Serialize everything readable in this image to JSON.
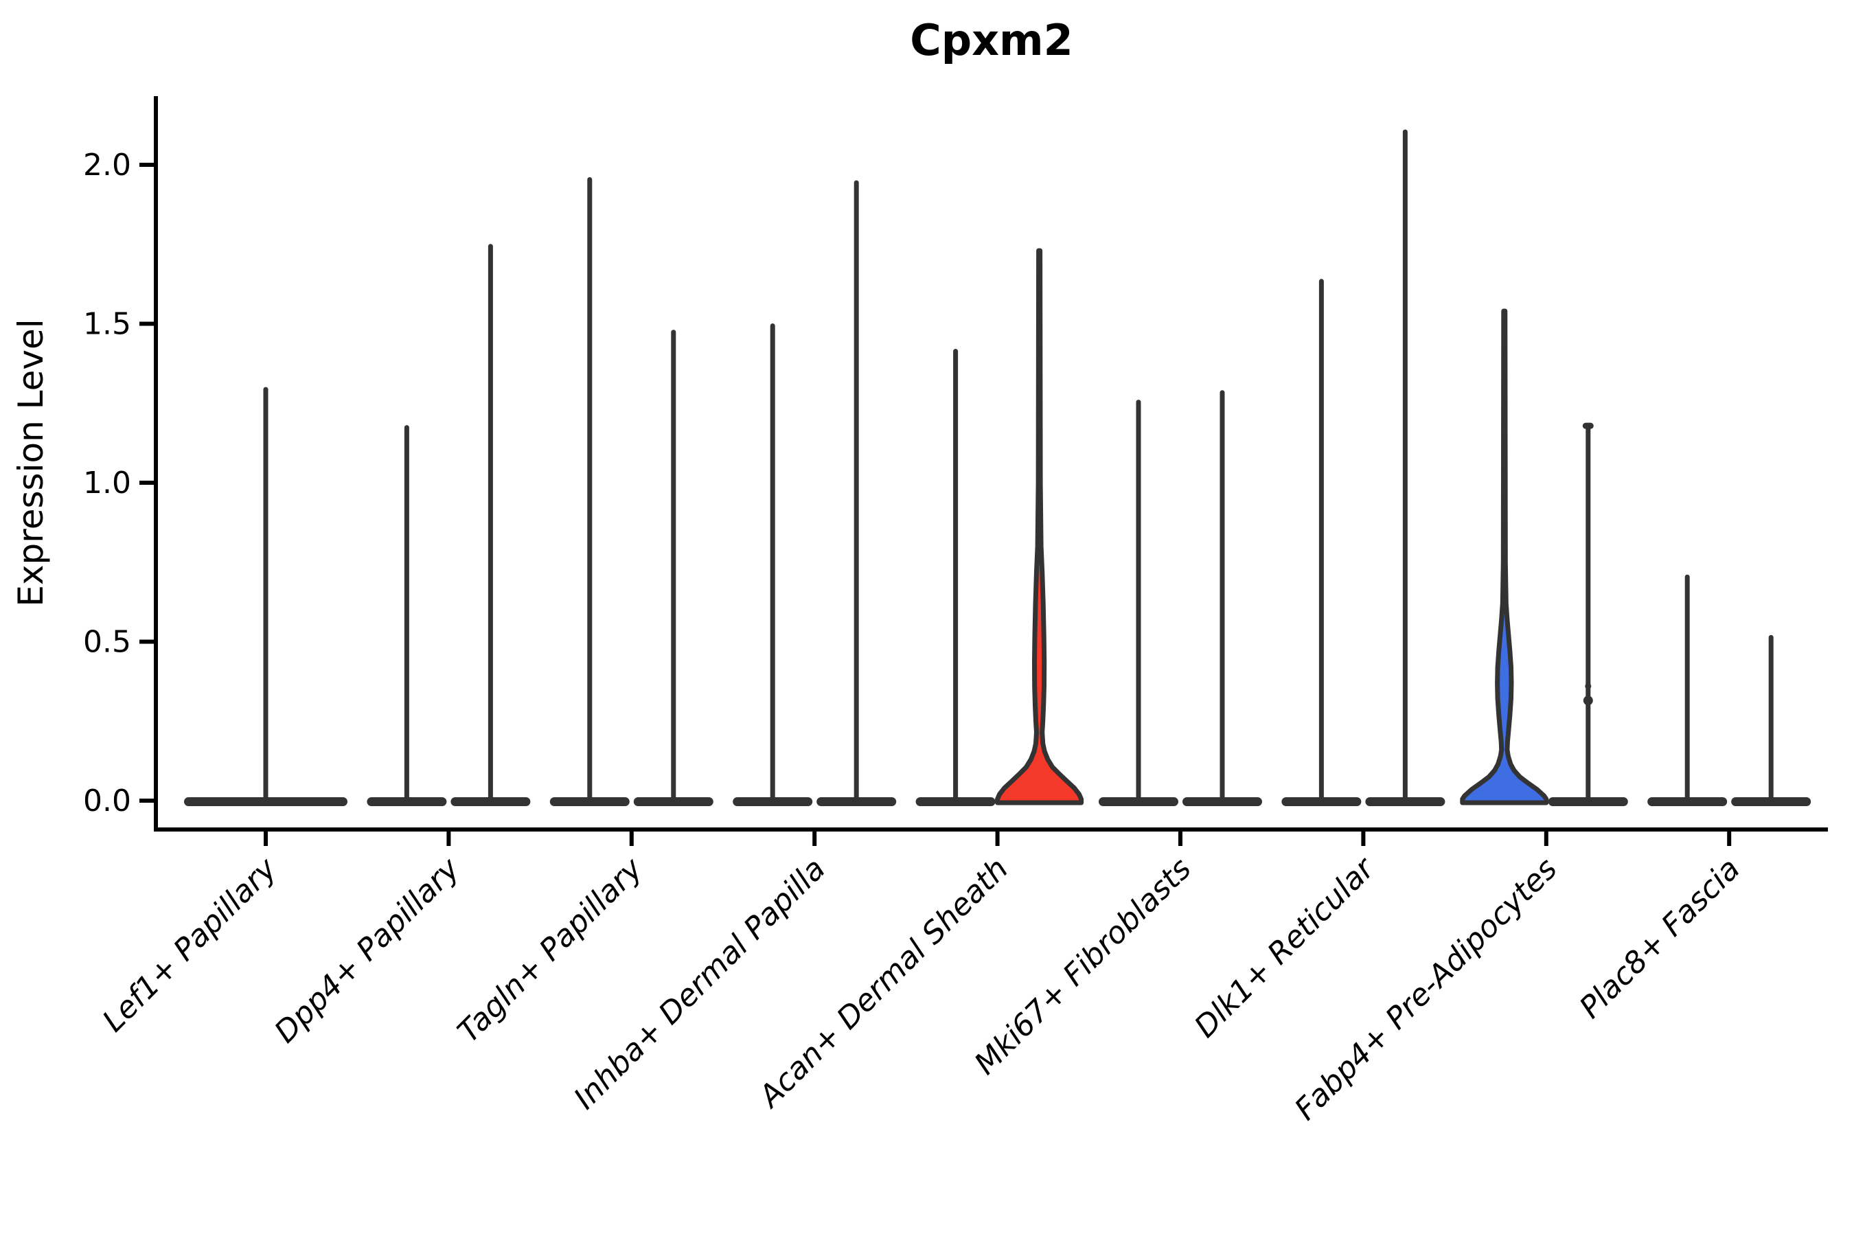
{
  "chart_data": {
    "type": "violin",
    "title": "Cpxm2",
    "ylabel": "Expression Level",
    "xlabel": "",
    "ytick_labels": [
      "0.0",
      "0.5",
      "1.0",
      "1.5",
      "2.0"
    ],
    "ytick_values": [
      0.0,
      0.5,
      1.0,
      1.5,
      2.0
    ],
    "ylim": [
      -0.11,
      2.22
    ],
    "grid": false,
    "legend": null,
    "categories": [
      "Lef1+ Papillary",
      "Dpp4+ Papillary",
      "Tagln+ Papillary",
      "Inhba+ Dermal Papilla",
      "Acan+ Dermal Sheath",
      "Mki67+ Fibroblasts",
      "Dlk1+ Reticular",
      "Fabp4+ Pre-Adipocytes",
      "Plac8+ Fascia"
    ],
    "violins": [
      {
        "category_index": 0,
        "category": "Lef1+ Papillary",
        "position": "center",
        "max_expression": 1.3,
        "fill": "white",
        "bulk_at_zero": true
      },
      {
        "category_index": 1,
        "category": "Dpp4+ Papillary",
        "position": "left",
        "max_expression": 1.18,
        "fill": "white",
        "bulk_at_zero": true
      },
      {
        "category_index": 1,
        "category": "Dpp4+ Papillary",
        "position": "right",
        "max_expression": 1.75,
        "fill": "white",
        "bulk_at_zero": true
      },
      {
        "category_index": 2,
        "category": "Tagln+ Papillary",
        "position": "left",
        "max_expression": 1.96,
        "fill": "white",
        "bulk_at_zero": true
      },
      {
        "category_index": 2,
        "category": "Tagln+ Papillary",
        "position": "right",
        "max_expression": 1.48,
        "fill": "white",
        "bulk_at_zero": true
      },
      {
        "category_index": 3,
        "category": "Inhba+ Dermal Papilla",
        "position": "left",
        "max_expression": 1.5,
        "fill": "white",
        "bulk_at_zero": true
      },
      {
        "category_index": 3,
        "category": "Inhba+ Dermal Papilla",
        "position": "right",
        "max_expression": 1.95,
        "fill": "white",
        "bulk_at_zero": true
      },
      {
        "category_index": 4,
        "category": "Acan+ Dermal Sheath",
        "position": "left",
        "max_expression": 1.42,
        "fill": "white",
        "bulk_at_zero": true
      },
      {
        "category_index": 4,
        "category": "Acan+ Dermal Sheath",
        "position": "right",
        "max_expression": 1.73,
        "fill": "red",
        "profile": "red_profile"
      },
      {
        "category_index": 5,
        "category": "Mki67+ Fibroblasts",
        "position": "left",
        "max_expression": 1.26,
        "fill": "white",
        "bulk_at_zero": true
      },
      {
        "category_index": 5,
        "category": "Mki67+ Fibroblasts",
        "position": "right",
        "max_expression": 1.29,
        "fill": "white",
        "bulk_at_zero": true
      },
      {
        "category_index": 6,
        "category": "Dlk1+ Reticular",
        "position": "left",
        "max_expression": 1.64,
        "fill": "white",
        "bulk_at_zero": true
      },
      {
        "category_index": 6,
        "category": "Dlk1+ Reticular",
        "position": "right",
        "max_expression": 2.11,
        "fill": "white",
        "bulk_at_zero": true
      },
      {
        "category_index": 7,
        "category": "Fabp4+ Pre-Adipocytes",
        "position": "left",
        "max_expression": 1.54,
        "fill": "blue",
        "profile": "blue_profile"
      },
      {
        "category_index": 7,
        "category": "Fabp4+ Pre-Adipocytes",
        "position": "right",
        "max_expression": 1.18,
        "fill": "white",
        "bulk_at_zero": true,
        "top_cap": true,
        "outlier_dots": [
          0.36,
          0.315
        ]
      },
      {
        "category_index": 8,
        "category": "Plac8+ Fascia",
        "position": "left",
        "max_expression": 0.71,
        "fill": "white",
        "bulk_at_zero": true
      },
      {
        "category_index": 8,
        "category": "Plac8+ Fascia",
        "position": "right",
        "max_expression": 0.52,
        "fill": "white",
        "bulk_at_zero": true
      }
    ],
    "profiles": {
      "red_profile": [
        [
          1.73,
          1
        ],
        [
          1.0,
          1.5
        ],
        [
          0.8,
          2.5
        ],
        [
          0.72,
          4
        ],
        [
          0.62,
          5.5
        ],
        [
          0.52,
          6.5
        ],
        [
          0.44,
          7
        ],
        [
          0.36,
          6.8
        ],
        [
          0.3,
          6
        ],
        [
          0.25,
          5
        ],
        [
          0.215,
          4
        ],
        [
          0.18,
          5
        ],
        [
          0.155,
          7.5
        ],
        [
          0.13,
          12
        ],
        [
          0.105,
          19
        ],
        [
          0.085,
          28
        ],
        [
          0.06,
          40
        ],
        [
          0.04,
          50
        ],
        [
          0.02,
          57
        ],
        [
          0.005,
          60
        ],
        [
          0.0,
          60
        ]
      ],
      "blue_profile": [
        [
          1.54,
          1
        ],
        [
          0.75,
          1.5
        ],
        [
          0.62,
          2.5
        ],
        [
          0.57,
          4
        ],
        [
          0.52,
          6
        ],
        [
          0.47,
          8
        ],
        [
          0.42,
          9.5
        ],
        [
          0.37,
          10
        ],
        [
          0.32,
          9.5
        ],
        [
          0.27,
          8
        ],
        [
          0.22,
          6
        ],
        [
          0.185,
          4.5
        ],
        [
          0.16,
          4
        ],
        [
          0.14,
          5.5
        ],
        [
          0.115,
          9
        ],
        [
          0.095,
          14
        ],
        [
          0.075,
          22
        ],
        [
          0.055,
          34
        ],
        [
          0.035,
          47
        ],
        [
          0.015,
          57
        ],
        [
          0.005,
          60
        ],
        [
          0.0,
          60
        ]
      ]
    },
    "colors": {
      "outline": "#333333",
      "red_fill": "#f4382a",
      "blue_fill": "#3f6de2",
      "background": "#ffffff"
    }
  }
}
